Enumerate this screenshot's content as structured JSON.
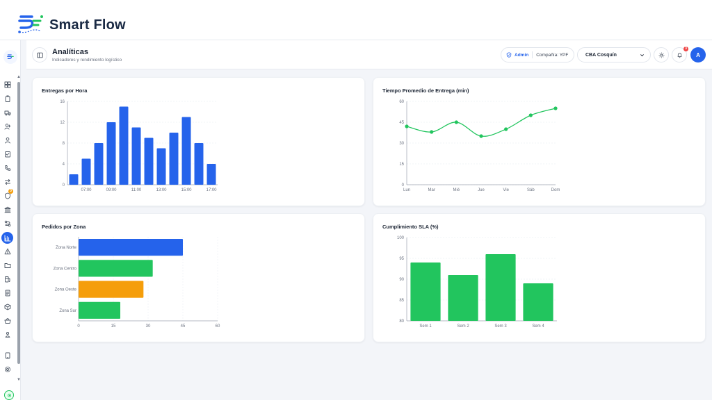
{
  "brand": {
    "name": "Smart Flow"
  },
  "header": {
    "title": "Analíticas",
    "subtitle": "Indicadores y rendimiento logístico",
    "role": "Admin",
    "company": "Compañía: YPF",
    "location_selected": "CBA Cosquín",
    "notifications_count": "3",
    "avatar_initial": "A"
  },
  "sidebar": {
    "badge_count": "3",
    "items": [
      "grid-icon",
      "clipboard-icon",
      "truck-icon",
      "user-plus-icon",
      "user-icon",
      "checklist-icon",
      "phone-icon",
      "transfer-icon",
      "shield-icon",
      "bank-icon",
      "route-icon",
      "chart-icon",
      "alert-icon",
      "folder-icon",
      "fuel-icon",
      "document-icon",
      "box-icon",
      "basket-icon",
      "team-icon",
      "tablet-icon",
      "settings-icon"
    ],
    "active": "chart-icon"
  },
  "colors": {
    "blue": "#2563eb",
    "green": "#22c55e",
    "orange": "#f59e0b"
  },
  "chart_data": [
    {
      "id": "entregas",
      "type": "bar",
      "title": "Entregas por Hora",
      "x": [
        "06:00",
        "07:00",
        "08:00",
        "09:00",
        "10:00",
        "11:00",
        "12:00",
        "13:00",
        "14:00",
        "15:00",
        "16:00",
        "17:00"
      ],
      "values": [
        2,
        5,
        8,
        12,
        15,
        11,
        9,
        7,
        10,
        13,
        8,
        4
      ],
      "tick_labels": [
        "07:00",
        "09:00",
        "11:00",
        "13:00",
        "15:00",
        "17:00"
      ],
      "yticks": [
        0,
        4,
        8,
        12,
        16
      ],
      "ylim": [
        0,
        16
      ],
      "grid": true,
      "color": "#2563eb"
    },
    {
      "id": "tiempo",
      "type": "line",
      "title": "Tiempo Promedio de Entrega (min)",
      "categories": [
        "Lun",
        "Mar",
        "Mié",
        "Jue",
        "Vie",
        "Sáb",
        "Dom"
      ],
      "values": [
        42,
        38,
        45,
        35,
        40,
        50,
        55
      ],
      "yticks": [
        0,
        15,
        30,
        45,
        60
      ],
      "ylim": [
        0,
        60
      ],
      "grid": true,
      "color": "#22c55e"
    },
    {
      "id": "zonas",
      "type": "bar",
      "orientation": "horizontal",
      "title": "Pedidos por Zona",
      "categories": [
        "Zona Norte",
        "Zona Centro",
        "Zona Oeste",
        "Zona Sur"
      ],
      "values": [
        45,
        32,
        28,
        18
      ],
      "colors": [
        "#2563eb",
        "#22c55e",
        "#f59e0b",
        "#22c55e"
      ],
      "xticks": [
        0,
        15,
        30,
        45,
        60
      ],
      "xlim": [
        0,
        60
      ],
      "grid": true
    },
    {
      "id": "sla",
      "type": "bar",
      "title": "Cumplimiento SLA (%)",
      "categories": [
        "Sem 1",
        "Sem 2",
        "Sem 3",
        "Sem 4"
      ],
      "values": [
        94,
        91,
        96,
        89
      ],
      "yticks": [
        80,
        85,
        90,
        95,
        100
      ],
      "ylim": [
        80,
        100
      ],
      "grid": true,
      "color": "#22c55e"
    }
  ]
}
